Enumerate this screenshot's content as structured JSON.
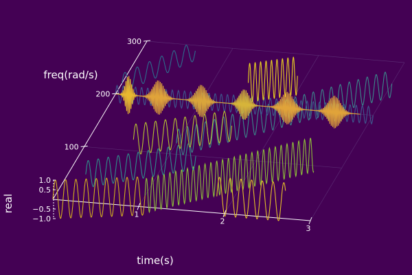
{
  "chart_data": {
    "type": "line",
    "projection": "3d",
    "title": "",
    "xlabel": "time(s)",
    "ylabel": "freq(rad/s)",
    "zlabel": "real",
    "xlim": [
      0,
      3
    ],
    "ylim": [
      0,
      300
    ],
    "zlim": [
      -1,
      1
    ],
    "x_ticks": [
      "1",
      "2",
      "3"
    ],
    "y_ticks": [
      "100",
      "200",
      "300"
    ],
    "z_ticks": [
      "1.0",
      "0.5",
      "−0.5",
      "−1.0"
    ],
    "grid": true,
    "legend": "none",
    "colormap": "viridis",
    "colors": {
      "background": "#440154",
      "axes": "#ffffff",
      "grid": "#5a2a72"
    },
    "series": [
      {
        "t_start": 0.0,
        "t_end": 1.0,
        "freq_start": 0,
        "freq_end": 20,
        "amplitude": 1.0,
        "osc_per_second": 9,
        "color": "#d4b01f"
      },
      {
        "t_start": 1.0,
        "t_end": 2.6,
        "freq_start": 20,
        "freq_end": 120,
        "amplitude": 0.9,
        "osc_per_second": 18,
        "color": "#8fc23a"
      },
      {
        "t_start": 0.2,
        "t_end": 1.3,
        "freq_start": 50,
        "freq_end": 100,
        "amplitude": 0.7,
        "osc_per_second": 10,
        "color": "#2f8f8b"
      },
      {
        "t_start": 1.8,
        "t_end": 2.6,
        "freq_start": 30,
        "freq_end": 30,
        "amplitude": 1.0,
        "osc_per_second": 8,
        "color": "#e6c229"
      },
      {
        "t_start": 1.0,
        "t_end": 3.0,
        "freq_start": 120,
        "freq_end": 260,
        "amplitude": 0.7,
        "osc_per_second": 12,
        "color": "#3b8a8c"
      },
      {
        "t_start": 0.0,
        "t_end": 3.0,
        "freq_start": 200,
        "freq_end": 200,
        "amplitude": 0.45,
        "osc_per_second": 14,
        "color": "#3e5a8f"
      },
      {
        "t_start": 0.0,
        "t_end": 0.6,
        "freq_start": 220,
        "freq_end": 290,
        "amplitude": 0.5,
        "osc_per_second": 10,
        "color": "#2d6e8e"
      },
      {
        "t_start": 1.4,
        "t_end": 1.9,
        "freq_start": 240,
        "freq_end": 260,
        "amplitude": 1.0,
        "osc_per_second": 18,
        "color": "#ecd421"
      },
      {
        "t_start": 0.5,
        "t_end": 1.5,
        "freq_start": 120,
        "freq_end": 160,
        "amplitude": 0.8,
        "osc_per_second": 10,
        "color": "#b8c432"
      }
    ],
    "bursts": [
      {
        "t": 0.15,
        "freq": 200,
        "width": 0.05,
        "amplitude": 1.0,
        "color": "#e8b830"
      },
      {
        "t": 0.5,
        "freq": 200,
        "width": 0.09,
        "amplitude": 0.9,
        "color": "#e0a33a"
      },
      {
        "t": 1.0,
        "freq": 200,
        "width": 0.09,
        "amplitude": 0.85,
        "color": "#d9a53b"
      },
      {
        "t": 1.5,
        "freq": 200,
        "width": 0.08,
        "amplitude": 0.8,
        "color": "#d6b43a"
      },
      {
        "t": 2.0,
        "freq": 200,
        "width": 0.1,
        "amplitude": 0.85,
        "color": "#e0a33a"
      },
      {
        "t": 2.55,
        "freq": 200,
        "width": 0.1,
        "amplitude": 0.85,
        "color": "#e0a33a"
      }
    ]
  }
}
